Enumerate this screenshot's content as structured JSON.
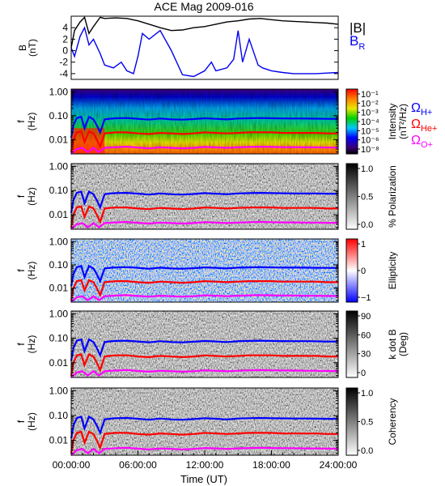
{
  "title": "ACE Mag 2009-016",
  "xlabel": "Time (UT)",
  "x_ticks": [
    "00:00:00",
    "06:00:00",
    "12:00:00",
    "18:00:00",
    "24:00:00"
  ],
  "legend": {
    "B_total": "|B|",
    "B_r_base": "B",
    "B_r_sub": "R",
    "omega": "Ω",
    "h_sub": "H+",
    "he_sub": "He+",
    "o_sub": "O+"
  },
  "colors": {
    "b_total": "#000000",
    "b_r": "#0000ee",
    "h_plus": "#0000ff",
    "he_plus": "#ff0000",
    "o_plus": "#ff00ff"
  },
  "freq_tick_labels": [
    "1.00",
    "0.10",
    "0.01"
  ],
  "panels": [
    {
      "ylabel1": "B",
      "ylabel2": "(nT)",
      "ytick_labels": [
        "4",
        "2",
        "0",
        "-2",
        "-4"
      ]
    },
    {
      "ylabel1": "f",
      "ylabel2": "(Hz)",
      "cbar_label1": "Intensity",
      "cbar_label2": "(nT²/Hz)",
      "cbar_ticks": [
        "10⁻¹",
        "10⁻²",
        "10⁻³",
        "10⁻⁴",
        "10⁻⁵",
        "10⁻⁶",
        "10⁻⁸"
      ],
      "colormap": "rainbow"
    },
    {
      "ylabel1": "f",
      "ylabel2": "(Hz)",
      "cbar_label1": "% Polarization",
      "cbar_ticks": [
        "1.0",
        "0.5",
        "0.0"
      ],
      "colormap": "gray"
    },
    {
      "ylabel1": "f",
      "ylabel2": "(Hz)",
      "cbar_label1": "Ellipticity",
      "cbar_ticks": [
        "1",
        "0",
        "−1"
      ],
      "colormap": "bwr"
    },
    {
      "ylabel1": "f",
      "ylabel2": "(Hz)",
      "cbar_label1": "k dot B",
      "cbar_label2": "(Deg)",
      "cbar_ticks": [
        "90",
        "60",
        "30",
        "0"
      ],
      "colormap": "gray"
    },
    {
      "ylabel1": "f",
      "ylabel2": "(Hz)",
      "cbar_label1": "Coherency",
      "cbar_ticks": [
        "1.0",
        "0.5",
        "0.0"
      ],
      "colormap": "gray"
    }
  ],
  "chart_data": [
    {
      "type": "line",
      "x_range_hours": [
        0,
        24
      ],
      "ylim": [
        -5,
        6
      ],
      "series": [
        {
          "name": "|B|",
          "color": "#000000",
          "x": [
            0,
            0.3,
            0.8,
            1.2,
            1.6,
            2.0,
            2.6,
            3.0,
            4.0,
            5.0,
            6.0,
            7.0,
            8.0,
            9.0,
            10.0,
            11.0,
            12.0,
            13.0,
            14.0,
            15.0,
            16.0,
            17.0,
            18.0,
            19.0,
            20.0,
            21.0,
            22.0,
            23.0,
            24.0
          ],
          "y": [
            0.5,
            3.5,
            5.0,
            5.8,
            3.0,
            4.2,
            5.8,
            5.6,
            5.7,
            5.6,
            5.2,
            4.6,
            4.0,
            3.5,
            3.6,
            4.0,
            4.2,
            4.6,
            5.0,
            5.2,
            5.5,
            5.6,
            5.4,
            5.2,
            5.1,
            5.0,
            4.9,
            4.8,
            4.6
          ]
        },
        {
          "name": "B_R",
          "color": "#0000ee",
          "x": [
            0,
            0.3,
            0.8,
            1.2,
            1.6,
            2.0,
            2.6,
            3.0,
            3.8,
            4.5,
            5.0,
            5.6,
            6.0,
            6.4,
            7.0,
            8.0,
            9.0,
            10.0,
            11.0,
            12.0,
            12.6,
            13.0,
            14.0,
            14.6,
            15.0,
            15.4,
            16.0,
            16.8,
            17.2,
            18.0,
            19.0,
            20.0,
            21.0,
            22.0,
            23.0,
            24.0
          ],
          "y": [
            0.5,
            -1.0,
            2.5,
            4.0,
            1.0,
            2.0,
            -0.5,
            -2.5,
            -3.0,
            -2.0,
            -3.5,
            -4.0,
            -1.0,
            3.0,
            2.0,
            3.5,
            0.0,
            -4.2,
            -4.5,
            -3.5,
            -2.0,
            -3.5,
            -3.0,
            -1.5,
            3.5,
            -2.0,
            2.0,
            -2.5,
            -3.0,
            -3.5,
            -3.8,
            -4.0,
            -4.0,
            -4.0,
            -3.9,
            -3.8
          ]
        }
      ]
    },
    {
      "type": "heatmap",
      "y_scale": "log",
      "ylim_hz": [
        0.0025,
        1.3
      ],
      "x_range_hours": [
        0,
        24
      ],
      "overlay_series": [
        {
          "name": "Ω H+",
          "color": "#0000ff",
          "x": [
            0,
            0.2,
            0.5,
            0.9,
            1.2,
            1.6,
            2.0,
            2.3,
            2.6,
            3.0,
            3.5,
            4.0,
            5.0,
            6.0,
            7.0,
            8.0,
            9.0,
            10.0,
            11.0,
            12.0,
            13.0,
            14.0,
            15.0,
            16.0,
            17.0,
            18.0,
            19.0,
            20.0,
            21.0,
            22.0,
            23.0,
            24.0
          ],
          "y": [
            0.012,
            0.04,
            0.08,
            0.09,
            0.03,
            0.09,
            0.07,
            0.04,
            0.02,
            0.07,
            0.075,
            0.078,
            0.08,
            0.074,
            0.068,
            0.076,
            0.07,
            0.068,
            0.072,
            0.078,
            0.074,
            0.07,
            0.076,
            0.078,
            0.08,
            0.078,
            0.077,
            0.076,
            0.076,
            0.075,
            0.074,
            0.073
          ]
        },
        {
          "name": "Ω He+",
          "color": "#ff0000",
          "x": [
            0,
            0.2,
            0.5,
            0.9,
            1.2,
            1.6,
            2.0,
            2.3,
            2.6,
            3.0,
            3.5,
            4.0,
            5.0,
            6.0,
            7.0,
            8.0,
            9.0,
            10.0,
            11.0,
            12.0,
            13.0,
            14.0,
            15.0,
            16.0,
            17.0,
            18.0,
            19.0,
            20.0,
            21.0,
            22.0,
            23.0,
            24.0
          ],
          "y": [
            0.003,
            0.01,
            0.02,
            0.022,
            0.008,
            0.022,
            0.018,
            0.01,
            0.005,
            0.018,
            0.019,
            0.02,
            0.02,
            0.018,
            0.017,
            0.019,
            0.018,
            0.017,
            0.018,
            0.02,
            0.019,
            0.018,
            0.019,
            0.02,
            0.02,
            0.02,
            0.019,
            0.019,
            0.019,
            0.019,
            0.018,
            0.018
          ]
        },
        {
          "name": "Ω O+",
          "color": "#ff00ff",
          "x": [
            0,
            0.5,
            1.0,
            1.5,
            2.0,
            2.5,
            3.0,
            4.0,
            5.0,
            6.0,
            7.0,
            8.0,
            9.0,
            10.0,
            11.0,
            12.0,
            13.0,
            14.0,
            15.0,
            16.0,
            17.0,
            18.0,
            19.0,
            20.0,
            21.0,
            22.0,
            23.0,
            24.0
          ],
          "y": [
            0.0025,
            0.004,
            0.0045,
            0.003,
            0.0045,
            0.003,
            0.0045,
            0.0048,
            0.005,
            0.0046,
            0.0043,
            0.0047,
            0.0045,
            0.0043,
            0.0045,
            0.0049,
            0.0047,
            0.0045,
            0.0047,
            0.0049,
            0.005,
            0.0049,
            0.0048,
            0.0048,
            0.0047,
            0.0047,
            0.0046,
            0.0046
          ]
        }
      ]
    }
  ]
}
